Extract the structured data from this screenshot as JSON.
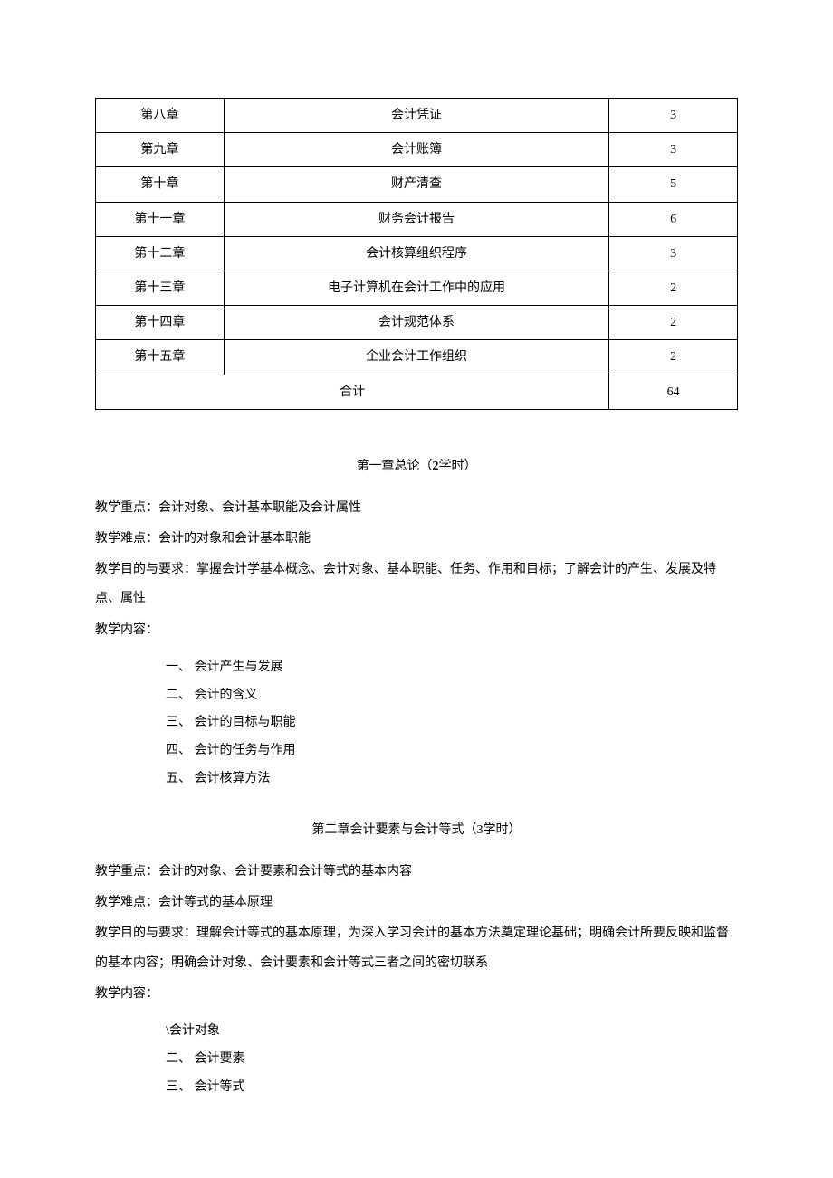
{
  "table": {
    "rows": [
      {
        "c1": "第八章",
        "c2": "会计凭证",
        "c3": "3"
      },
      {
        "c1": "第九章",
        "c2": "会计账簿",
        "c3": "3"
      },
      {
        "c1": "第十章",
        "c2": "财产清查",
        "c3": "5"
      },
      {
        "c1": "第十一章",
        "c2": "财务会计报告",
        "c3": "6"
      },
      {
        "c1": "第十二章",
        "c2": "会计核算组织程序",
        "c3": "3"
      },
      {
        "c1": "第十三章",
        "c2": "电子计算机在会计工作中的应用",
        "c3": "2"
      },
      {
        "c1": "第十四章",
        "c2": "会计规范体系",
        "c3": "2"
      },
      {
        "c1": "第十五章",
        "c2": "企业会计工作组织",
        "c3": "2"
      }
    ],
    "footer": {
      "label": "合计",
      "value": "64"
    }
  },
  "chapter1": {
    "title_prefix": "第一章总论（",
    "title_bold": "2",
    "title_suffix": "学时）",
    "focus": "教学重点：会计对象、会计基本职能及会计属性",
    "difficulty": "教学难点：会计的对象和会计基本职能",
    "objective": "教学目的与要求：掌握会计学基本概念、会计对象、基本职能、任务、作用和目标；了解会计的产生、发展及特点、属性",
    "content_label": "教学内容：",
    "items": [
      "一、 会计产生与发展",
      "二、 会计的含义",
      "三、 会计的目标与职能",
      "四、 会计的任务与作用",
      "五、 会计核算方法"
    ]
  },
  "chapter2": {
    "title": "第二章会计要素与会计等式（3学时）",
    "focus": "教学重点：会计的对象、会计要素和会计等式的基本内容",
    "difficulty": "教学难点：会计等式的基本原理",
    "objective": "教学目的与要求：理解会计等式的基本原理，为深入学习会计的基本方法奠定理论基础；明确会计所要反映和监督的基本内容；明确会计对象、会计要素和会计等式三者之间的密切联系",
    "content_label": "教学内容：",
    "items": [
      "\\会计对象",
      "二、 会计要素",
      "三、 会计等式"
    ]
  }
}
